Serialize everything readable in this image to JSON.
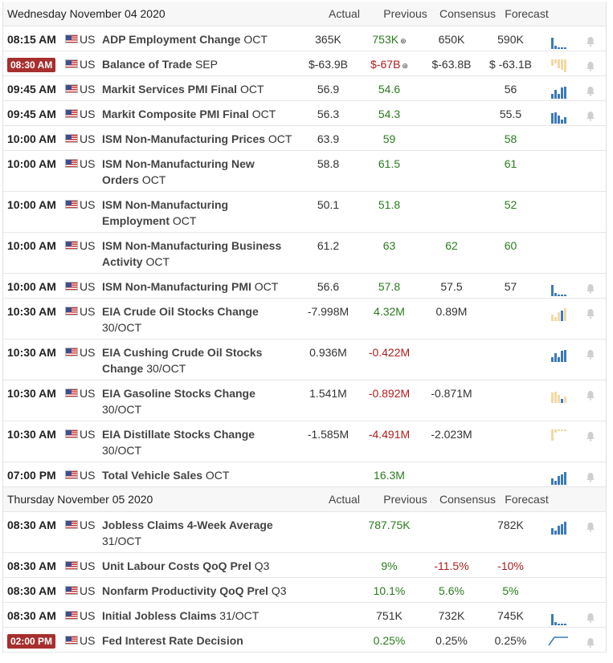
{
  "days": [
    {
      "header": {
        "date": "Wednesday November 04 2020",
        "actual": "Actual",
        "previous": "Previous",
        "consensus": "Consensus",
        "forecast": "Forecast"
      },
      "rows": [
        {
          "time": "08:15 AM",
          "highlight": false,
          "country": "US",
          "name": "ADP Employment Change",
          "period": "OCT",
          "actual": "365K",
          "previous": "753K",
          "prev_mark": "⊛",
          "prev_color": "green",
          "consensus": "650K",
          "cons_color": "",
          "forecast": "590K",
          "fore_color": "",
          "spark_icon": "blue-bars",
          "bell": true
        },
        {
          "time": "08:30 AM",
          "highlight": true,
          "country": "US",
          "name": "Balance of Trade",
          "period": "SEP",
          "actual": "$-63.9B",
          "previous": "$-67B",
          "prev_mark": "⊛",
          "prev_color": "red",
          "consensus": "$-63.8B",
          "cons_color": "",
          "forecast": "$ -63.1B",
          "fore_color": "",
          "spark_icon": "tan-bars",
          "bell": true
        },
        {
          "time": "09:45 AM",
          "highlight": false,
          "country": "US",
          "name": "Markit Services PMI Final",
          "period": "OCT",
          "actual": "56.9",
          "previous": "54.6",
          "prev_mark": "",
          "prev_color": "green",
          "consensus": "",
          "cons_color": "",
          "forecast": "56",
          "fore_color": "",
          "spark_icon": "blue-bars",
          "bell": true
        },
        {
          "time": "09:45 AM",
          "highlight": false,
          "country": "US",
          "name": "Markit Composite PMI Final",
          "period": "OCT",
          "actual": "56.3",
          "previous": "54.3",
          "prev_mark": "",
          "prev_color": "green",
          "consensus": "",
          "cons_color": "",
          "forecast": "55.5",
          "fore_color": "",
          "spark_icon": "blue-bars",
          "bell": true
        },
        {
          "time": "10:00 AM",
          "highlight": false,
          "country": "US",
          "name": "ISM Non-Manufacturing Prices",
          "period": "OCT",
          "actual": "63.9",
          "previous": "59",
          "prev_mark": "",
          "prev_color": "green",
          "consensus": "",
          "cons_color": "",
          "forecast": "58",
          "fore_color": "green",
          "spark_icon": "",
          "bell": false
        },
        {
          "time": "10:00 AM",
          "highlight": false,
          "country": "US",
          "name": "ISM Non-Manufacturing New Orders",
          "period": "OCT",
          "actual": "58.8",
          "previous": "61.5",
          "prev_mark": "",
          "prev_color": "green",
          "consensus": "",
          "cons_color": "",
          "forecast": "61",
          "fore_color": "green",
          "spark_icon": "",
          "bell": false
        },
        {
          "time": "10:00 AM",
          "highlight": false,
          "country": "US",
          "name": "ISM Non-Manufacturing Employment",
          "period": "OCT",
          "actual": "50.1",
          "previous": "51.8",
          "prev_mark": "",
          "prev_color": "green",
          "consensus": "",
          "cons_color": "",
          "forecast": "52",
          "fore_color": "green",
          "spark_icon": "",
          "bell": false
        },
        {
          "time": "10:00 AM",
          "highlight": false,
          "country": "US",
          "name": "ISM Non-Manufacturing Business Activity",
          "period": "OCT",
          "actual": "61.2",
          "previous": "63",
          "prev_mark": "",
          "prev_color": "green",
          "consensus": "62",
          "cons_color": "green",
          "forecast": "60",
          "fore_color": "green",
          "spark_icon": "",
          "bell": false
        },
        {
          "time": "10:00 AM",
          "highlight": false,
          "country": "US",
          "name": "ISM Non-Manufacturing PMI",
          "period": "OCT",
          "actual": "56.6",
          "previous": "57.8",
          "prev_mark": "",
          "prev_color": "green",
          "consensus": "57.5",
          "cons_color": "",
          "forecast": "57",
          "fore_color": "",
          "spark_icon": "blue-bars",
          "bell": true
        },
        {
          "time": "10:30 AM",
          "highlight": false,
          "country": "US",
          "name": "EIA Crude Oil Stocks Change",
          "period": "30/OCT",
          "actual": "-7.998M",
          "previous": "4.32M",
          "prev_mark": "",
          "prev_color": "green",
          "consensus": "0.89M",
          "cons_color": "",
          "forecast": "",
          "fore_color": "",
          "spark_icon": "mixed-bars",
          "bell": true
        },
        {
          "time": "10:30 AM",
          "highlight": false,
          "country": "US",
          "name": "EIA Cushing Crude Oil Stocks Change",
          "period": "30/OCT",
          "actual": "0.936M",
          "previous": "-0.422M",
          "prev_mark": "",
          "prev_color": "red",
          "consensus": "",
          "cons_color": "",
          "forecast": "",
          "fore_color": "",
          "spark_icon": "blue-bars",
          "bell": true
        },
        {
          "time": "10:30 AM",
          "highlight": false,
          "country": "US",
          "name": "EIA Gasoline Stocks Change",
          "period": "30/OCT",
          "actual": "1.541M",
          "previous": "-0.892M",
          "prev_mark": "",
          "prev_color": "red",
          "consensus": "-0.871M",
          "cons_color": "",
          "forecast": "",
          "fore_color": "",
          "spark_icon": "mixed-bars",
          "bell": true
        },
        {
          "time": "10:30 AM",
          "highlight": false,
          "country": "US",
          "name": "EIA Distillate Stocks Change",
          "period": "30/OCT",
          "actual": "-1.585M",
          "previous": "-4.491M",
          "prev_mark": "",
          "prev_color": "red",
          "consensus": "-2.023M",
          "cons_color": "",
          "forecast": "",
          "fore_color": "",
          "spark_icon": "tan-bars",
          "bell": true
        },
        {
          "time": "07:00 PM",
          "highlight": false,
          "country": "US",
          "name": "Total Vehicle Sales",
          "period": "OCT",
          "actual": "",
          "previous": "16.3M",
          "prev_mark": "",
          "prev_color": "green",
          "consensus": "",
          "cons_color": "",
          "forecast": "",
          "fore_color": "",
          "spark_icon": "blue-bars",
          "bell": true
        }
      ]
    },
    {
      "header": {
        "date": "Thursday November 05 2020",
        "actual": "Actual",
        "previous": "Previous",
        "consensus": "Consensus",
        "forecast": "Forecast"
      },
      "rows": [
        {
          "time": "08:30 AM",
          "highlight": false,
          "country": "US",
          "name": "Jobless Claims 4-Week Average",
          "period": "31/OCT",
          "actual": "",
          "previous": "787.75K",
          "prev_mark": "",
          "prev_color": "green",
          "consensus": "",
          "cons_color": "",
          "forecast": "782K",
          "fore_color": "",
          "spark_icon": "blue-bars",
          "bell": true
        },
        {
          "time": "08:30 AM",
          "highlight": false,
          "country": "US",
          "name": "Unit Labour Costs QoQ Prel",
          "period": "Q3",
          "actual": "",
          "previous": "9%",
          "prev_mark": "",
          "prev_color": "green",
          "consensus": "-11.5%",
          "cons_color": "red",
          "forecast": "-10%",
          "fore_color": "red",
          "spark_icon": "",
          "bell": false
        },
        {
          "time": "08:30 AM",
          "highlight": false,
          "country": "US",
          "name": "Nonfarm Productivity QoQ Prel",
          "period": "Q3",
          "actual": "",
          "previous": "10.1%",
          "prev_mark": "",
          "prev_color": "green",
          "consensus": "5.6%",
          "cons_color": "green",
          "forecast": "5%",
          "fore_color": "green",
          "spark_icon": "",
          "bell": false
        },
        {
          "time": "08:30 AM",
          "highlight": false,
          "country": "US",
          "name": "Initial Jobless Claims",
          "period": "31/OCT",
          "actual": "",
          "previous": "751K",
          "prev_mark": "",
          "prev_color": "",
          "consensus": "732K",
          "cons_color": "",
          "forecast": "745K",
          "fore_color": "",
          "spark_icon": "blue-bars",
          "bell": true
        },
        {
          "time": "02:00 PM",
          "highlight": true,
          "country": "US",
          "name": "Fed Interest Rate Decision",
          "period": "",
          "actual": "",
          "previous": "0.25%",
          "prev_mark": "",
          "prev_color": "green",
          "consensus": "0.25%",
          "cons_color": "",
          "forecast": "0.25%",
          "fore_color": "",
          "spark_icon": "line",
          "bell": true
        }
      ]
    }
  ],
  "colors": {
    "green": "#2a7b1e",
    "red": "#b01c1c",
    "badge": "#a72f2f",
    "spark_blue": "#3d7ab8",
    "spark_tan": "#f0d9a4",
    "bell": "#cfcfcf"
  }
}
